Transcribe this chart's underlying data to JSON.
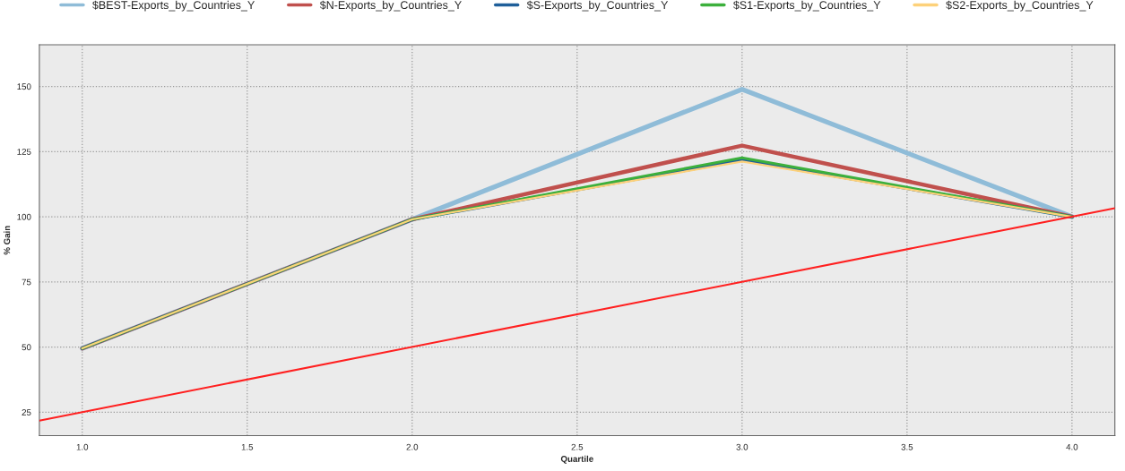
{
  "chart_data": {
    "type": "line",
    "xlabel": "Quartile",
    "ylabel": "% Gain",
    "x": [
      1,
      2,
      3,
      4
    ],
    "series": [
      {
        "name": "$BEST-Exports_by_Countries_Y",
        "color": "#8fbcd8",
        "values": [
          49.5,
          99,
          148.9,
          100
        ]
      },
      {
        "name": "$N-Exports_by_Countries_Y",
        "color": "#c0504d",
        "values": [
          49.5,
          99,
          127.3,
          100
        ]
      },
      {
        "name": "$S-Exports_by_Countries_Y",
        "color": "#1f5f9a",
        "values": [
          49.5,
          99,
          121.8,
          100
        ]
      },
      {
        "name": "$S1-Exports_by_Countries_Y",
        "color": "#3cb03c",
        "values": [
          49.5,
          99,
          122.6,
          100
        ]
      },
      {
        "name": "$S2-Exports_by_Countries_Y",
        "color": "#fdd17a",
        "values": [
          49.5,
          99,
          121.2,
          100
        ]
      },
      {
        "color": "#ff2020",
        "x": [
          0.87,
          4.13
        ],
        "values": [
          21.8,
          103.3
        ]
      }
    ],
    "xlim": [
      0.87,
      4.13
    ],
    "ylim": [
      16,
      166
    ],
    "xticks": [
      {
        "value": 1,
        "label": "1.0"
      },
      {
        "value": 1.5,
        "label": "1.5"
      },
      {
        "value": 2,
        "label": "2.0"
      },
      {
        "value": 2.5,
        "label": "2.5"
      },
      {
        "value": 3,
        "label": "3.0"
      },
      {
        "value": 3.5,
        "label": "3.5"
      },
      {
        "value": 4,
        "label": "4.0"
      }
    ],
    "yticks": [
      25,
      50,
      75,
      100,
      125,
      150
    ],
    "grid": true,
    "legend": "top",
    "line_style": "solid",
    "marker": "none"
  }
}
